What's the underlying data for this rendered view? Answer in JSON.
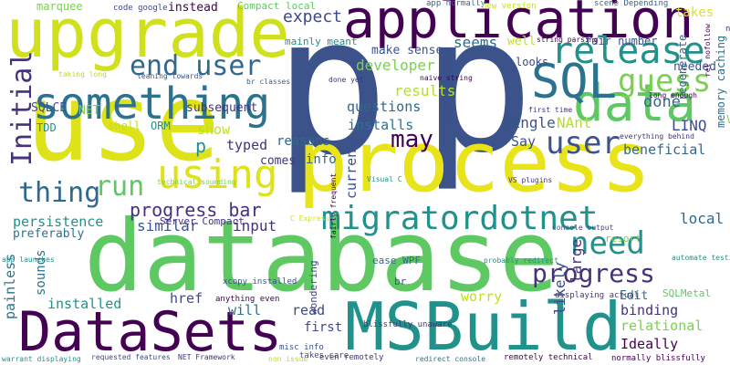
{
  "words": [
    {
      "text": "p",
      "color": "#3b528b"
    },
    {
      "text": "p",
      "color": "#3b528b"
    },
    {
      "text": "database",
      "color": "#5ec962"
    },
    {
      "text": "process",
      "color": "#e8e419"
    },
    {
      "text": "use",
      "color": "#dde318"
    },
    {
      "text": "upgrade",
      "color": "#d0e11c"
    },
    {
      "text": "application",
      "color": "#440154"
    },
    {
      "text": "MSBuild",
      "color": "#21918c"
    },
    {
      "text": "DataSets",
      "color": "#440154"
    },
    {
      "text": "data",
      "color": "#5ec962"
    },
    {
      "text": "something",
      "color": "#2c728e"
    },
    {
      "text": "SQL",
      "color": "#2c728e"
    },
    {
      "text": "using",
      "color": "#dde318"
    },
    {
      "text": "release",
      "color": "#21918c"
    },
    {
      "text": "migratordotnet",
      "color": "#21918c"
    },
    {
      "text": "user",
      "color": "#3b528b"
    },
    {
      "text": "guess",
      "color": "#7ad151"
    },
    {
      "text": "need",
      "color": "#21918c"
    },
    {
      "text": "run",
      "color": "#5ec962"
    },
    {
      "text": "progress",
      "color": "#46327e"
    },
    {
      "text": "end user",
      "color": "#31688e"
    },
    {
      "text": "thing",
      "color": "#31688e"
    },
    {
      "text": "Initial",
      "color": "#46327e"
    },
    {
      "text": "may",
      "color": "#440154"
    },
    {
      "text": "progress bar",
      "color": "#46327e"
    },
    {
      "text": "expect",
      "color": "#3e4989"
    },
    {
      "text": "done",
      "color": "#31688e"
    },
    {
      "text": "LINQ",
      "color": "#3e4989"
    },
    {
      "text": "developer",
      "color": "#7ad151"
    },
    {
      "text": "results",
      "color": "#b5de2b"
    },
    {
      "text": "seems",
      "color": "#31688e"
    },
    {
      "text": "questions",
      "color": "#31688e"
    },
    {
      "text": "installs",
      "color": "#2c728e"
    },
    {
      "text": "Single",
      "color": "#3b528b"
    },
    {
      "text": "NAnt",
      "color": "#b5de2b"
    },
    {
      "text": "Say",
      "color": "#3b528b"
    },
    {
      "text": "beneficial",
      "color": "#31688e"
    },
    {
      "text": "typed",
      "color": "#46327e"
    },
    {
      "text": "comes",
      "color": "#46327e"
    },
    {
      "text": "info",
      "color": "#31688e"
    },
    {
      "text": "reasons",
      "color": "#31688e"
    },
    {
      "text": "current",
      "color": "#3b528b"
    },
    {
      "text": "local",
      "color": "#31688e"
    },
    {
      "text": "likely",
      "color": "#3e4989"
    },
    {
      "text": "large",
      "color": "#46327e"
    },
    {
      "text": "similar",
      "color": "#3b528b"
    },
    {
      "text": "input",
      "color": "#46327e"
    },
    {
      "text": "persistence",
      "color": "#21918c"
    },
    {
      "text": "preferably",
      "color": "#2c728e"
    },
    {
      "text": "sounds",
      "color": "#2c728e"
    },
    {
      "text": "painless",
      "color": "#2c728e"
    },
    {
      "text": "installed",
      "color": "#21918c"
    },
    {
      "text": "href",
      "color": "#3e4989"
    },
    {
      "text": "will",
      "color": "#2c728e"
    },
    {
      "text": "read",
      "color": "#3e4989"
    },
    {
      "text": "worry",
      "color": "#bddf26"
    },
    {
      "text": "Edit",
      "color": "#31688e"
    },
    {
      "text": "binding",
      "color": "#46327e"
    },
    {
      "text": "relational",
      "color": "#7ad151"
    },
    {
      "text": "Ideally",
      "color": "#440154"
    },
    {
      "text": "first",
      "color": "#3e4989"
    },
    {
      "text": "show",
      "color": "#bddf26"
    },
    {
      "text": "SQLCE",
      "color": "#3b528b"
    },
    {
      "text": "NET",
      "color": "#7ad151"
    },
    {
      "text": "subsequent",
      "color": "#46327e"
    },
    {
      "text": "make sense",
      "color": "#3b528b"
    },
    {
      "text": "takes",
      "color": "#dde318"
    },
    {
      "text": "needed",
      "color": "#3b528b"
    },
    {
      "text": "looks",
      "color": "#3e4989"
    },
    {
      "text": "well",
      "color": "#c2df23"
    },
    {
      "text": "VS",
      "color": "#7ad151"
    },
    {
      "text": "regenerate",
      "color": "#31688e"
    },
    {
      "text": "memory caching",
      "color": "#2c728e"
    },
    {
      "text": "marquee",
      "color": "#7ad151"
    },
    {
      "text": "code google",
      "color": "#3e4989"
    },
    {
      "text": "instead",
      "color": "#440154"
    },
    {
      "text": "Compact local",
      "color": "#5ec962"
    },
    {
      "text": "app normally",
      "color": "#31688e"
    },
    {
      "text": "new version",
      "color": "#c2df23"
    },
    {
      "text": "scene Depending",
      "color": "#31688e"
    },
    {
      "text": "mainly meant",
      "color": "#21918c"
    },
    {
      "text": "fair number",
      "color": "#3b528b"
    },
    {
      "text": "string parsing",
      "color": "#440154"
    },
    {
      "text": "TDD",
      "color": "#21918c"
    },
    {
      "text": "shell",
      "color": "#c2df23"
    },
    {
      "text": "ORM",
      "color": "#21918c"
    },
    {
      "text": "Server Compact",
      "color": "#46327e"
    },
    {
      "text": "ease WPF",
      "color": "#31688e"
    },
    {
      "text": "resort",
      "color": "#7ad151"
    },
    {
      "text": "SQLMetal",
      "color": "#5ec962"
    },
    {
      "text": "br",
      "color": "#3b528b"
    },
    {
      "text": "wondering",
      "color": "#3e4989"
    },
    {
      "text": "blissfully unaware",
      "color": "#46327e"
    },
    {
      "text": "misc info",
      "color": "#3b528b"
    },
    {
      "text": "takes care",
      "color": "#3e4989"
    },
    {
      "text": "even remotely",
      "color": "#46327e"
    },
    {
      "text": "remotely technical",
      "color": "#440154"
    },
    {
      "text": "normally blissfully",
      "color": "#440154"
    },
    {
      "text": "xcopy installed",
      "color": "#3b528b"
    },
    {
      "text": "anything even",
      "color": "#440154"
    },
    {
      "text": "displaying actual",
      "color": "#46327e"
    },
    {
      "text": "probably redirect",
      "color": "#21918c"
    },
    {
      "text": "automate testing",
      "color": "#21918c"
    },
    {
      "text": "console output",
      "color": "#3e4989"
    },
    {
      "text": "VS plugins",
      "color": "#46327e"
    },
    {
      "text": "Visual C",
      "color": "#21918c"
    },
    {
      "text": "technical sounding",
      "color": "#7ad151"
    },
    {
      "text": "everything behind",
      "color": "#46327e"
    },
    {
      "text": "long enough",
      "color": "#440154"
    },
    {
      "text": "first time",
      "color": "#46327e"
    },
    {
      "text": "program evolving",
      "color": "#3b528b"
    },
    {
      "text": "naive string",
      "color": "#440154"
    },
    {
      "text": "done yet",
      "color": "#46327e"
    },
    {
      "text": "br classes",
      "color": "#31688e"
    },
    {
      "text": "taking long",
      "color": "#b5de2b"
    },
    {
      "text": "leaning towards",
      "color": "#3b528b"
    },
    {
      "text": "fairly frequent",
      "color": "#440154"
    },
    {
      "text": "C Express",
      "color": "#d8e219"
    },
    {
      "text": "app launches",
      "color": "#21918c"
    },
    {
      "text": "warrant displaying",
      "color": "#21918c"
    },
    {
      "text": "requested features",
      "color": "#3e4989"
    },
    {
      "text": "NET Framework",
      "color": "#46327e"
    },
    {
      "text": "non issue",
      "color": "#b5de2b"
    },
    {
      "text": "redirect console",
      "color": "#2c728e"
    },
    {
      "text": "rel nofollow",
      "color": "#440154"
    },
    {
      "text": "p",
      "color": "#21918c"
    },
    {
      "text": "ng",
      "color": "#46327e"
    }
  ]
}
